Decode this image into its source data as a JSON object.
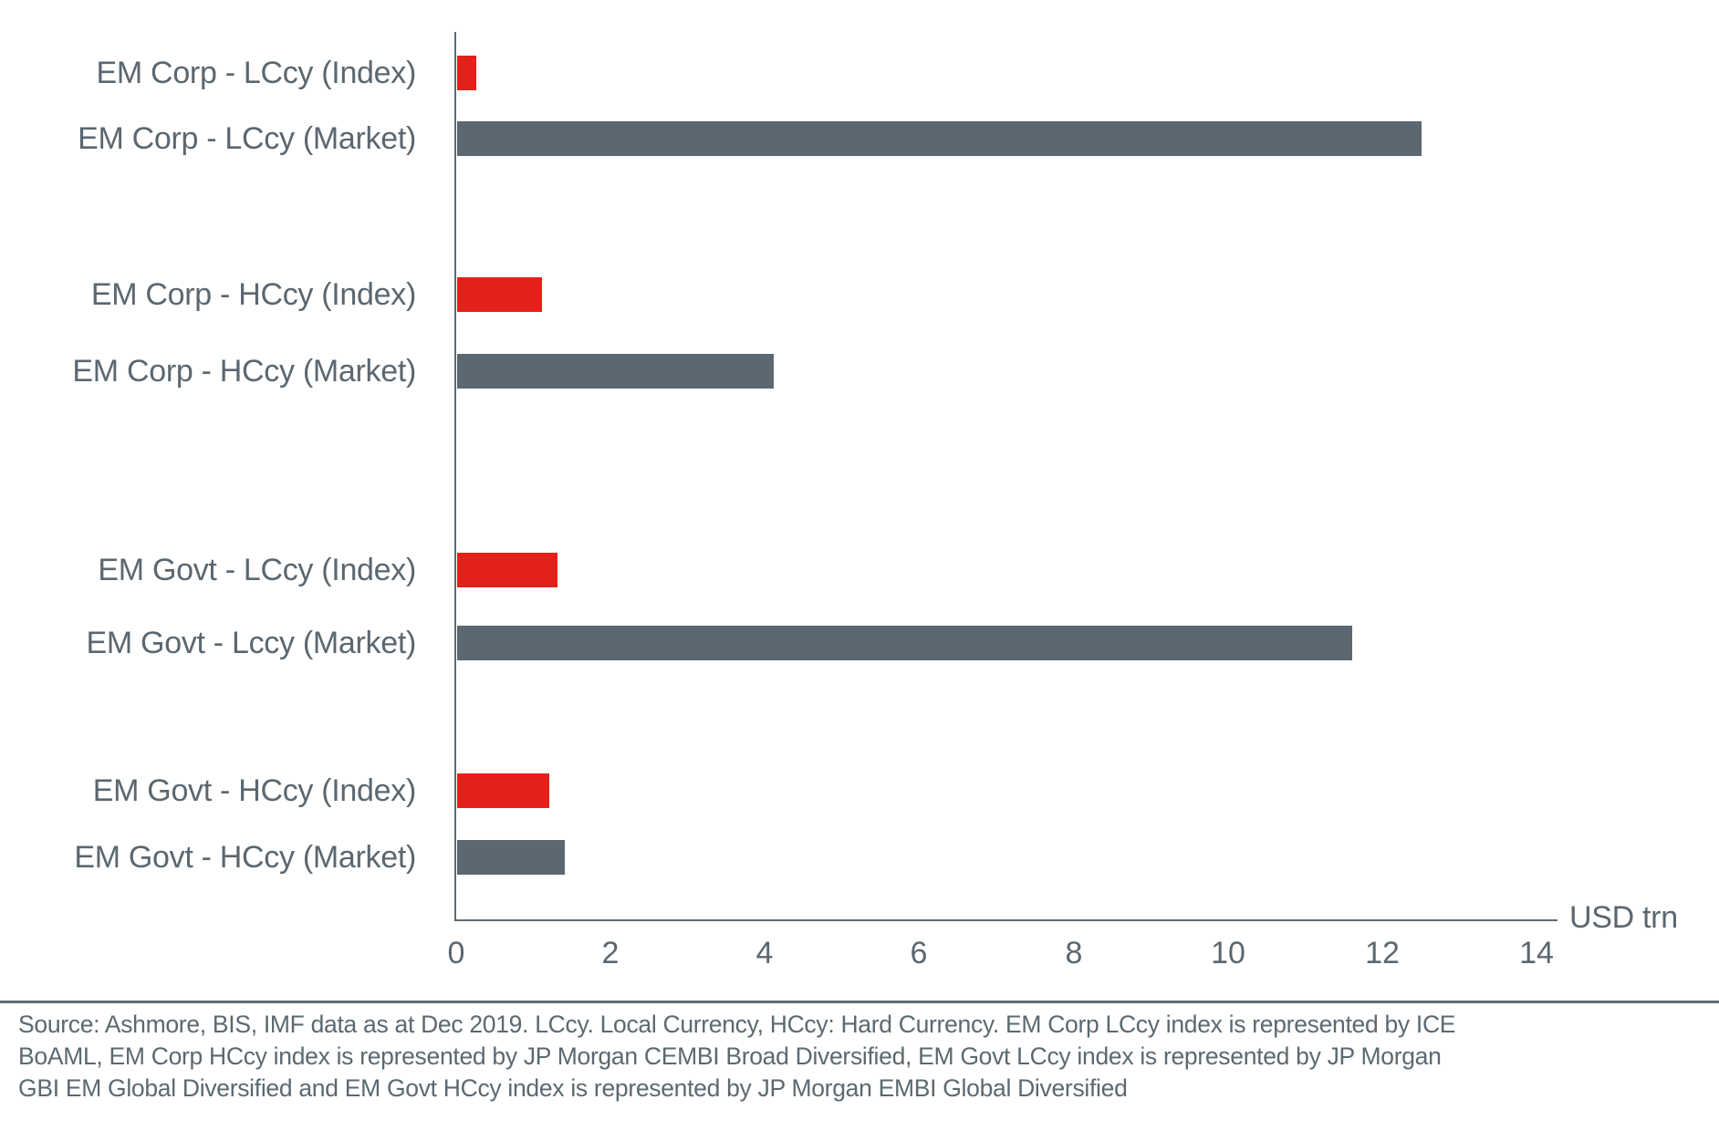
{
  "chart_data": {
    "type": "bar",
    "orientation": "horizontal",
    "title": "",
    "xlabel": "USD trn",
    "ylabel": "",
    "xlim": [
      0,
      14
    ],
    "x_ticks": [
      "0",
      "2",
      "4",
      "6",
      "8",
      "10",
      "12",
      "14"
    ],
    "grid": false,
    "legend_position": "none",
    "categories": [
      "EM Corp - LCcy (Index)",
      "EM Corp - LCcy (Market)",
      "EM Corp - HCcy (Index)",
      "EM Corp - HCcy (Market)",
      "EM Govt - LCcy (Index)",
      "EM Govt - Lccy (Market)",
      "EM Govt - HCcy (Index)",
      "EM Govt - HCcy (Market)"
    ],
    "values": [
      0.25,
      12.5,
      1.1,
      4.1,
      1.3,
      11.6,
      1.2,
      1.4
    ],
    "series_kind": [
      "index",
      "market",
      "index",
      "market",
      "index",
      "market",
      "index",
      "market"
    ],
    "colors": {
      "index": "#e32119",
      "market": "#5b6771"
    }
  },
  "axis": {
    "unit_label": "USD trn"
  },
  "footer": {
    "source_text": "Source: Ashmore, BIS, IMF data as at Dec 2019. LCcy. Local Currency, HCcy: Hard Currency. EM Corp LCcy index is represented by ICE BoAML, EM Corp HCcy index is represented by JP Morgan CEMBI Broad Diversified, EM Govt LCcy index is represented by JP Morgan GBI EM Global Diversified and EM Govt HCcy index is represented by JP Morgan EMBI Global Diversified"
  },
  "palette": {
    "text": "#5b6770",
    "axis_line": "#5e6a73",
    "divider": "#5f6b74"
  }
}
